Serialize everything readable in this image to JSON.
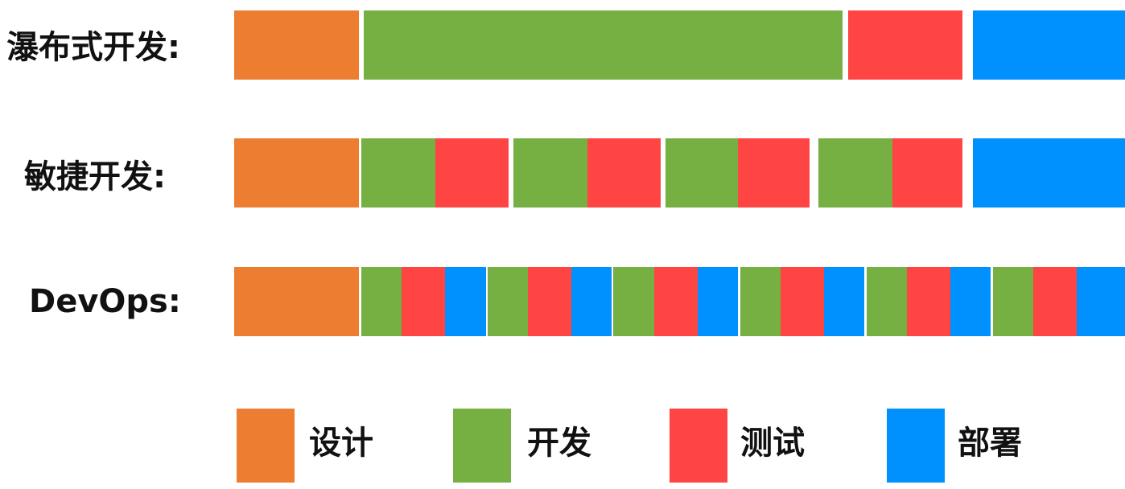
{
  "rows": [
    {
      "label": "瀑布式开发:",
      "segments": [
        {
          "phase": "design",
          "start": 0.0,
          "end": 0.1404
        },
        {
          "phase": "develop",
          "start": 0.1458,
          "end": 0.6829
        },
        {
          "phase": "test",
          "start": 0.6892,
          "end": 0.8175
        },
        {
          "phase": "deploy",
          "start": 0.8292,
          "end": 1.0
        }
      ]
    },
    {
      "label": "敏捷开发:",
      "segments": [
        {
          "phase": "design",
          "start": 0.0,
          "end": 0.1404
        },
        {
          "phase": "develop",
          "start": 0.1423,
          "end": 0.2259
        },
        {
          "phase": "test",
          "start": 0.2259,
          "end": 0.3076
        },
        {
          "phase": "develop",
          "start": 0.3138,
          "end": 0.3966
        },
        {
          "phase": "test",
          "start": 0.3966,
          "end": 0.4787
        },
        {
          "phase": "develop",
          "start": 0.4841,
          "end": 0.5654
        },
        {
          "phase": "test",
          "start": 0.5654,
          "end": 0.6459
        },
        {
          "phase": "develop",
          "start": 0.6558,
          "end": 0.7389
        },
        {
          "phase": "test",
          "start": 0.7389,
          "end": 0.8175
        },
        {
          "phase": "deploy",
          "start": 0.8292,
          "end": 1.0
        }
      ]
    },
    {
      "label": "DevOps:",
      "segments": [
        {
          "phase": "design",
          "start": 0.0,
          "end": 0.1404
        },
        {
          "phase": "develop",
          "start": 0.1423,
          "end": 0.188
        },
        {
          "phase": "test",
          "start": 0.188,
          "end": 0.2367
        },
        {
          "phase": "deploy",
          "start": 0.2367,
          "end": 0.2828
        },
        {
          "phase": "develop",
          "start": 0.2846,
          "end": 0.3297
        },
        {
          "phase": "test",
          "start": 0.3297,
          "end": 0.3785
        },
        {
          "phase": "deploy",
          "start": 0.3785,
          "end": 0.4237
        },
        {
          "phase": "develop",
          "start": 0.4256,
          "end": 0.4715
        },
        {
          "phase": "test",
          "start": 0.4715,
          "end": 0.5203
        },
        {
          "phase": "deploy",
          "start": 0.5203,
          "end": 0.5655
        },
        {
          "phase": "develop",
          "start": 0.5682,
          "end": 0.6133
        },
        {
          "phase": "test",
          "start": 0.6133,
          "end": 0.6621
        },
        {
          "phase": "deploy",
          "start": 0.6621,
          "end": 0.7073
        },
        {
          "phase": "develop",
          "start": 0.71,
          "end": 0.7552
        },
        {
          "phase": "test",
          "start": 0.7552,
          "end": 0.804
        },
        {
          "phase": "deploy",
          "start": 0.804,
          "end": 0.8492
        },
        {
          "phase": "develop",
          "start": 0.8519,
          "end": 0.897
        },
        {
          "phase": "test",
          "start": 0.897,
          "end": 0.9458
        },
        {
          "phase": "deploy",
          "start": 0.9458,
          "end": 1.0
        }
      ]
    }
  ],
  "legend": [
    {
      "phase": "design",
      "label": "设计"
    },
    {
      "phase": "develop",
      "label": "开发"
    },
    {
      "phase": "test",
      "label": "测试"
    },
    {
      "phase": "deploy",
      "label": "部署"
    }
  ],
  "colors": {
    "design": "#ED7D31",
    "develop": "#76B043",
    "test": "#FF4444",
    "deploy": "#0091FF"
  }
}
